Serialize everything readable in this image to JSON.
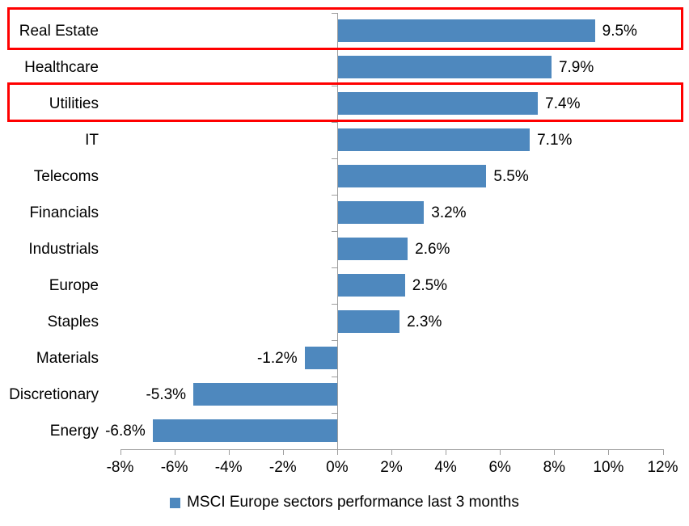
{
  "chart_data": {
    "type": "bar",
    "orientation": "horizontal",
    "title": "",
    "categories": [
      "Real Estate",
      "Healthcare",
      "Utilities",
      "IT",
      "Telecoms",
      "Financials",
      "Industrials",
      "Europe",
      "Staples",
      "Materials",
      "Discretionary",
      "Energy"
    ],
    "values": [
      9.5,
      7.9,
      7.4,
      7.1,
      5.5,
      3.2,
      2.6,
      2.5,
      2.3,
      -1.2,
      -5.3,
      -6.8
    ],
    "data_labels": [
      "9.5%",
      "7.9%",
      "7.4%",
      "7.1%",
      "5.5%",
      "3.2%",
      "2.6%",
      "2.5%",
      "2.3%",
      "-1.2%",
      "-5.3%",
      "-6.8%"
    ],
    "x_axis": {
      "min": -8,
      "max": 12,
      "tick_step": 2,
      "tick_labels": [
        "-8%",
        "-6%",
        "-4%",
        "-2%",
        "0%",
        "2%",
        "4%",
        "6%",
        "8%",
        "10%",
        "12%"
      ]
    },
    "grid": false,
    "legend": {
      "position": "bottom",
      "label": "MSCI Europe sectors performance last 3 months"
    },
    "series_color": "#4E88BE",
    "axis_color": "#9e9e9e",
    "highlight_color": "#FF0000",
    "highlighted_categories": [
      "Real Estate",
      "Utilities"
    ]
  }
}
